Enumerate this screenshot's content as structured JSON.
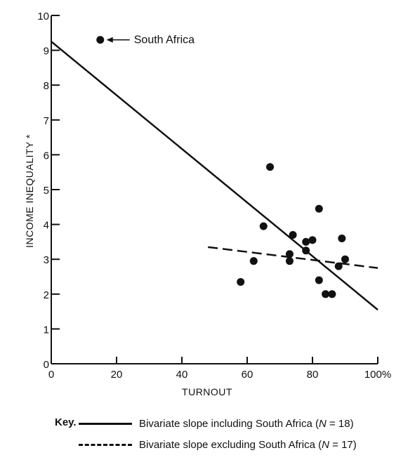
{
  "chart_data": {
    "type": "scatter",
    "xlabel": "TURNOUT",
    "ylabel": "INCOME INEQUALITY *",
    "xlim": [
      0,
      100
    ],
    "ylim": [
      0,
      10
    ],
    "x_ticks": [
      "0",
      "20",
      "40",
      "60",
      "80",
      "100%"
    ],
    "y_ticks": [
      "0",
      "1",
      "2",
      "3",
      "4",
      "5",
      "6",
      "7",
      "8",
      "9",
      "10"
    ],
    "grid": false,
    "points": [
      {
        "x": 15,
        "y": 9.3
      },
      {
        "x": 67,
        "y": 5.65
      },
      {
        "x": 82,
        "y": 4.45
      },
      {
        "x": 65,
        "y": 3.95
      },
      {
        "x": 74,
        "y": 3.7
      },
      {
        "x": 78,
        "y": 3.5
      },
      {
        "x": 80,
        "y": 3.55
      },
      {
        "x": 89,
        "y": 3.6
      },
      {
        "x": 78,
        "y": 3.25
      },
      {
        "x": 73,
        "y": 3.15
      },
      {
        "x": 62,
        "y": 2.95
      },
      {
        "x": 73,
        "y": 2.95
      },
      {
        "x": 90,
        "y": 3.0
      },
      {
        "x": 88,
        "y": 2.8
      },
      {
        "x": 58,
        "y": 2.35
      },
      {
        "x": 82,
        "y": 2.4
      },
      {
        "x": 84,
        "y": 2.0
      },
      {
        "x": 86,
        "y": 2.0
      }
    ],
    "lines": [
      {
        "name": "Bivariate slope including South Africa",
        "style": "solid",
        "x": [
          0,
          100
        ],
        "y": [
          9.25,
          1.55
        ]
      },
      {
        "name": "Bivariate slope excluding South Africa",
        "style": "dashed",
        "x": [
          48,
          100
        ],
        "y": [
          3.35,
          2.75
        ]
      }
    ],
    "annotations": [
      {
        "text": "South Africa",
        "x": 15,
        "y": 9.3
      }
    ]
  },
  "key": {
    "label": "Key.",
    "items": [
      {
        "style": "solid",
        "text": "Bivariate slope including South Africa (",
        "n_symbol": "N",
        "n_text": " = 18)"
      },
      {
        "style": "dashed",
        "text": "Bivariate slope excluding South Africa (",
        "n_symbol": "N",
        "n_text": " = 17)"
      }
    ]
  }
}
